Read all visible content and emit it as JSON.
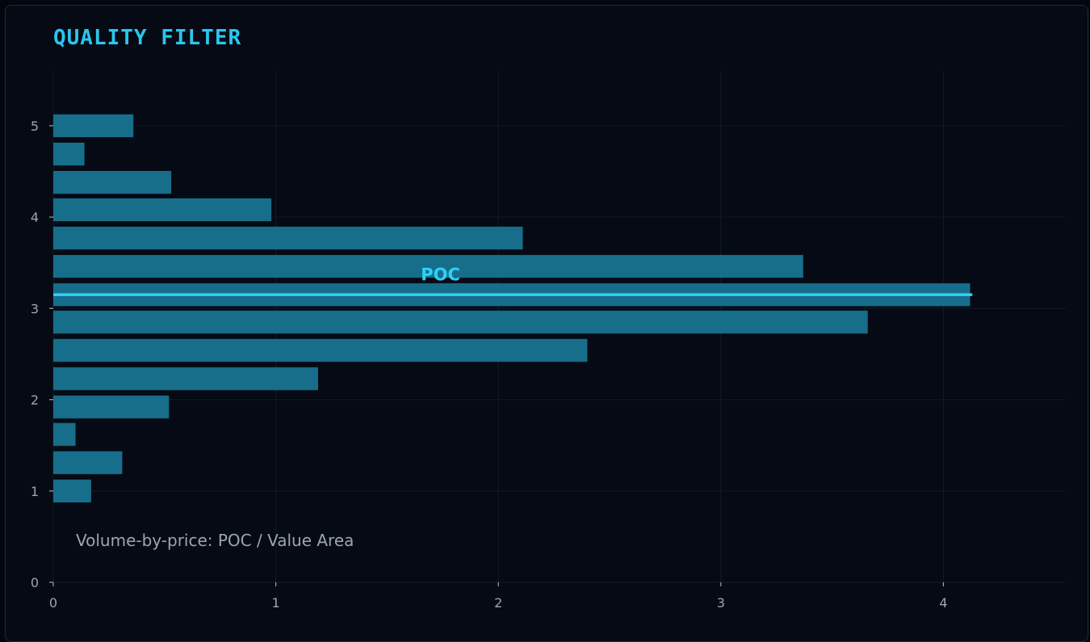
{
  "title": "QUALITY FILTER",
  "chart_data": {
    "type": "bar",
    "orientation": "horizontal",
    "title": "QUALITY FILTER",
    "xlabel": "",
    "ylabel": "",
    "xlim": [
      0,
      4.55
    ],
    "ylim": [
      0,
      5.6
    ],
    "xticks": [
      0,
      1,
      2,
      3,
      4
    ],
    "yticks": [
      0,
      1,
      2,
      3,
      4,
      5
    ],
    "bar_height": 0.25,
    "bars": [
      {
        "y": 1.0,
        "value": 0.17
      },
      {
        "y": 1.31,
        "value": 0.31
      },
      {
        "y": 1.62,
        "value": 0.1
      },
      {
        "y": 1.92,
        "value": 0.52
      },
      {
        "y": 2.23,
        "value": 1.19
      },
      {
        "y": 2.54,
        "value": 2.4
      },
      {
        "y": 2.85,
        "value": 3.66
      },
      {
        "y": 3.15,
        "value": 4.12
      },
      {
        "y": 3.46,
        "value": 3.37
      },
      {
        "y": 3.77,
        "value": 2.11
      },
      {
        "y": 4.08,
        "value": 0.98
      },
      {
        "y": 4.38,
        "value": 0.53
      },
      {
        "y": 4.69,
        "value": 0.14
      },
      {
        "y": 5.0,
        "value": 0.36
      }
    ],
    "poc": {
      "label": "POC",
      "y": 3.15,
      "x_end": 4.13
    },
    "annotation": "Volume-by-price: POC / Value Area",
    "grid": true,
    "colors": {
      "bar": "#176e8a",
      "poc": "#2fd0f5",
      "grid": "#0f1d2a"
    }
  }
}
